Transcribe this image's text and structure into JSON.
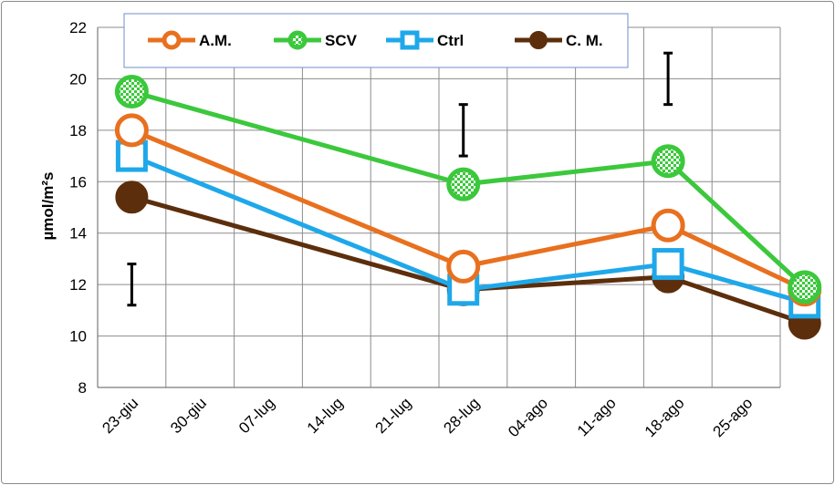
{
  "chart_data": {
    "type": "line",
    "title": "",
    "xlabel": "",
    "ylabel": "µmol/m²s",
    "ylim": [
      8,
      22
    ],
    "yticks": [
      8,
      10,
      12,
      14,
      16,
      18,
      20,
      22
    ],
    "xtick_labels": [
      "23-giu",
      "30-giu",
      "07-lug",
      "14-lug",
      "21-lug",
      "28-lug",
      "04-ago",
      "11-ago",
      "18-ago",
      "25-ago"
    ],
    "x": [
      "23-giu",
      "27-lug",
      "17-ago",
      "31-ago"
    ],
    "grid": true,
    "legend": "top",
    "series": [
      {
        "name": "A.M.",
        "color": "#e8701e",
        "marker": "open-circle",
        "values": [
          18.0,
          12.7,
          14.3,
          11.8
        ]
      },
      {
        "name": "SCV",
        "color": "#3cc83c",
        "marker": "checkered-circle",
        "values": [
          19.5,
          15.9,
          16.8,
          11.9
        ]
      },
      {
        "name": "Ctrl",
        "color": "#1ea8ea",
        "marker": "open-square",
        "values": [
          17.0,
          11.8,
          12.8,
          11.3
        ]
      },
      {
        "name": "C. M.",
        "color": "#5c2e0c",
        "marker": "filled-circle",
        "values": [
          15.4,
          11.8,
          12.3,
          10.5
        ]
      }
    ],
    "error_bars": [
      {
        "x": "23-giu",
        "low": 11.2,
        "high": 12.8
      },
      {
        "x": "27-lug",
        "low": 17.0,
        "high": 19.0
      },
      {
        "x": "17-ago",
        "low": 19.0,
        "high": 21.0
      }
    ]
  }
}
